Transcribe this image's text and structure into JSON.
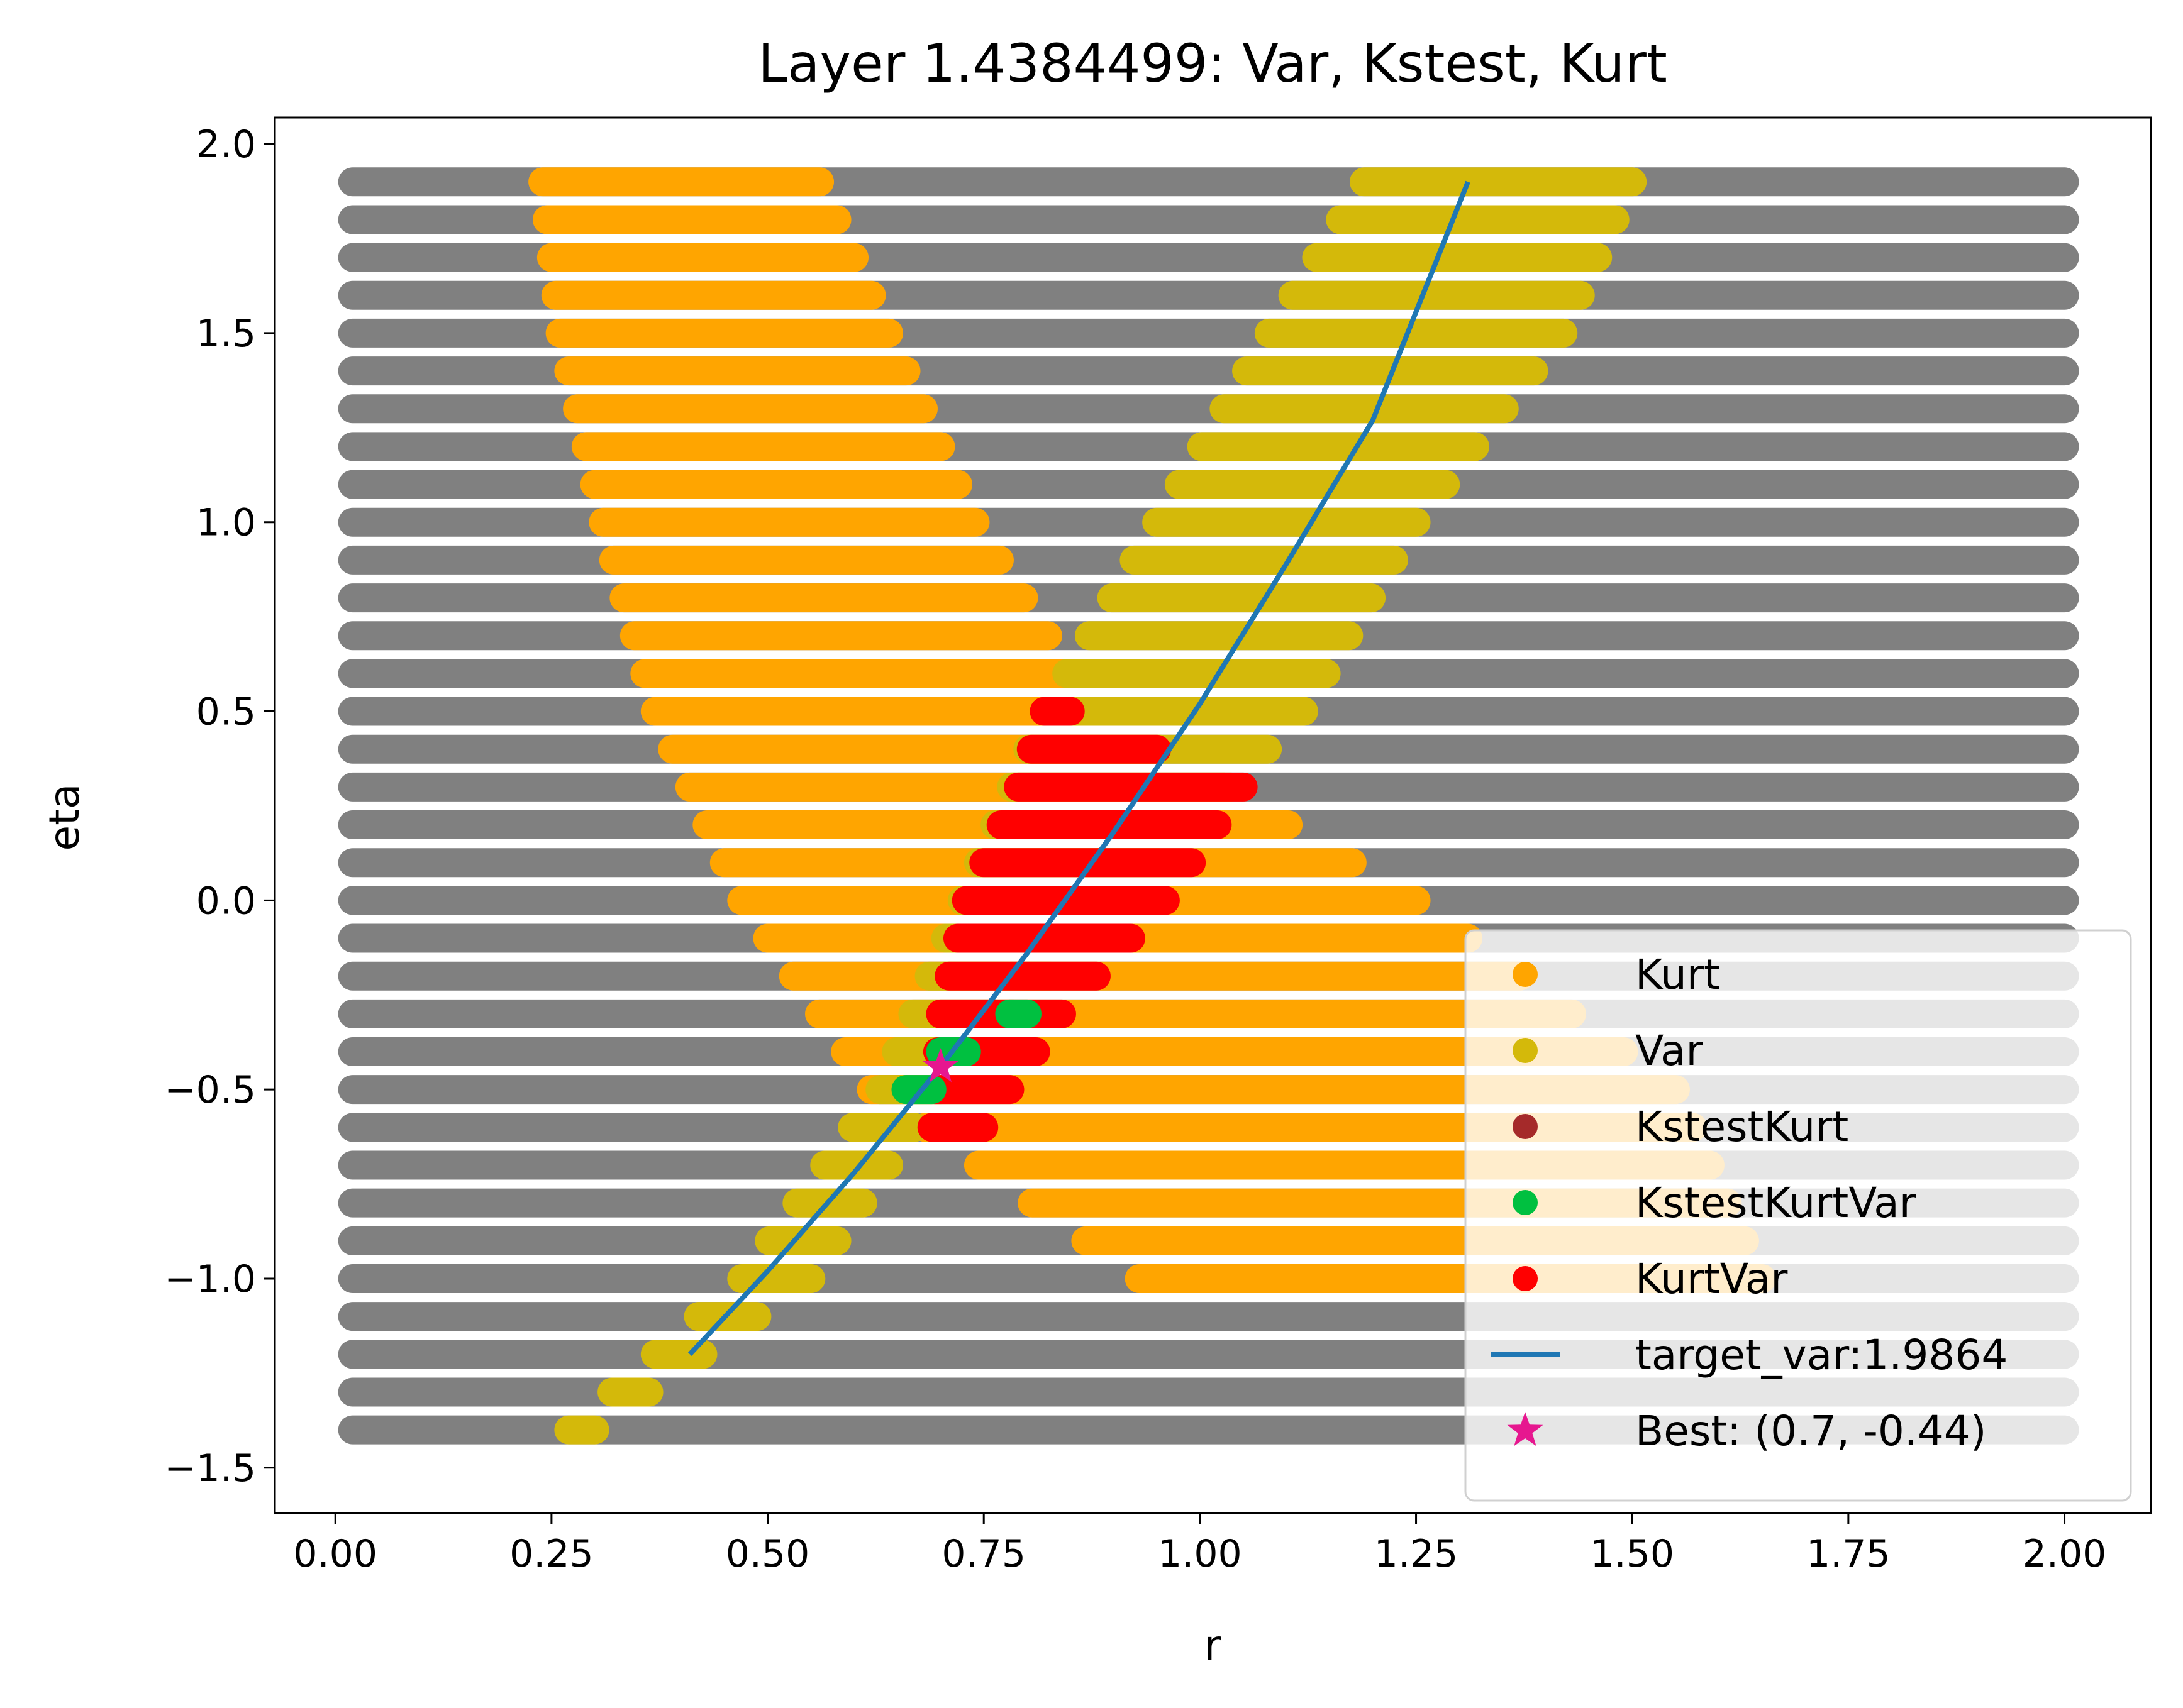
{
  "chart_data": {
    "type": "scatter",
    "title": "Layer 1.4384499: Var, Kstest, Kurt",
    "xlabel": "r",
    "ylabel": "eta",
    "xlim": [
      -0.07,
      2.1
    ],
    "ylim": [
      -1.62,
      2.07
    ],
    "xticks": [
      0.0,
      0.25,
      0.5,
      0.75,
      1.0,
      1.25,
      1.5,
      1.75,
      2.0
    ],
    "yticks": [
      -1.5,
      -1.0,
      -0.5,
      0.0,
      0.5,
      1.0,
      1.5,
      2.0
    ],
    "xtick_labels": [
      "0.00",
      "0.25",
      "0.50",
      "0.75",
      "1.00",
      "1.25",
      "1.50",
      "1.75",
      "2.00"
    ],
    "ytick_labels": [
      "−1.5",
      "−1.0",
      "−0.5",
      "0.0",
      "0.5",
      "1.0",
      "1.5",
      "2.0"
    ],
    "grid": false,
    "legend_position": "bottom-right",
    "colors": {
      "background_points": "#808080",
      "Kurt": "#ffa500",
      "Var": "#d4b90a",
      "KstestKurt": "#a52a2a",
      "KstestKurtVar": "#00c040",
      "KurtVar": "#ff0000",
      "target_var": "#1f77b4",
      "best": "#e6178f"
    },
    "grid_points": {
      "description_source": "uniform sweep of r and eta",
      "r_range": [
        0.02,
        2.0
      ],
      "eta_range": [
        -1.4,
        1.9
      ],
      "eta_step": 0.1
    },
    "regions": {
      "Kurt": [
        {
          "eta": 1.9,
          "r": [
            0.24,
            0.56
          ]
        },
        {
          "eta": 1.5,
          "r": [
            0.26,
            0.64
          ]
        },
        {
          "eta": 1.0,
          "r": [
            0.31,
            0.74
          ]
        },
        {
          "eta": 0.5,
          "r": [
            0.37,
            0.88
          ]
        },
        {
          "eta": 0.0,
          "r": [
            0.47,
            1.25
          ]
        },
        {
          "eta": -0.5,
          "r": [
            0.62,
            1.55
          ]
        },
        {
          "eta": -1.0,
          "r": [
            0.93,
            1.65
          ]
        }
      ],
      "Var": [
        {
          "eta": 1.9,
          "r": [
            1.19,
            1.5
          ]
        },
        {
          "eta": 1.5,
          "r": [
            1.08,
            1.42
          ]
        },
        {
          "eta": 1.0,
          "r": [
            0.95,
            1.25
          ]
        },
        {
          "eta": 0.5,
          "r": [
            0.82,
            1.12
          ]
        },
        {
          "eta": -0.5,
          "r": [
            0.63,
            0.7
          ]
        },
        {
          "eta": -1.0,
          "r": [
            0.47,
            0.55
          ]
        },
        {
          "eta": -1.4,
          "r": [
            0.27,
            0.3
          ]
        }
      ],
      "KurtVar": [
        {
          "eta": 0.5,
          "r": [
            0.82,
            0.85
          ]
        },
        {
          "eta": 0.3,
          "r": [
            0.79,
            1.05
          ]
        },
        {
          "eta": 0.0,
          "r": [
            0.73,
            0.96
          ]
        },
        {
          "eta": -0.3,
          "r": [
            0.7,
            0.84
          ]
        },
        {
          "eta": -0.6,
          "r": [
            0.69,
            0.75
          ]
        }
      ],
      "KstestKurtVar": [
        {
          "eta": -0.4,
          "r": [
            0.7,
            0.73
          ]
        },
        {
          "eta": -0.5,
          "r": [
            0.66,
            0.69
          ]
        },
        {
          "eta": -0.3,
          "r": [
            0.78,
            0.8
          ]
        }
      ],
      "KstestKurt": []
    },
    "series": [
      {
        "name": "Kurt",
        "kind": "marker",
        "color": "#ffa500"
      },
      {
        "name": "Var",
        "kind": "marker",
        "color": "#d4b90a"
      },
      {
        "name": "KstestKurt",
        "kind": "marker",
        "color": "#a52a2a"
      },
      {
        "name": "KstestKurtVar",
        "kind": "marker",
        "color": "#00c040"
      },
      {
        "name": "KurtVar",
        "kind": "marker",
        "color": "#ff0000"
      },
      {
        "name": "target_var:1.9864",
        "kind": "line",
        "color": "#1f77b4",
        "x": [
          0.41,
          0.5,
          0.6,
          0.7,
          0.8,
          0.9,
          1.0,
          1.1,
          1.2,
          1.31
        ],
        "y": [
          -1.2,
          -0.98,
          -0.72,
          -0.44,
          -0.14,
          0.18,
          0.52,
          0.89,
          1.27,
          1.9
        ]
      },
      {
        "name": "Best: (0.7, -0.44)",
        "kind": "star",
        "color": "#e6178f",
        "x": [
          0.7
        ],
        "y": [
          -0.44
        ]
      }
    ]
  }
}
